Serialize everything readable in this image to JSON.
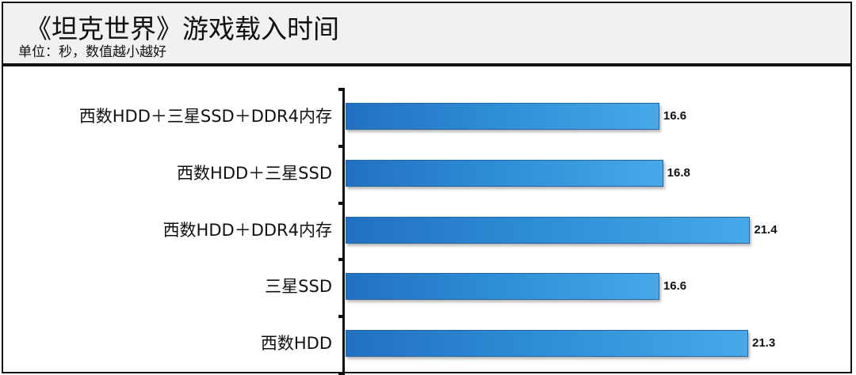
{
  "header": {
    "title": "《坦克世界》游戏载入时间",
    "subtitle": "单位：秒，数值越小越好"
  },
  "chart_data": {
    "type": "bar",
    "orientation": "horizontal",
    "title": "《坦克世界》游戏载入时间",
    "subtitle": "单位：秒，数值越小越好",
    "xlabel": "",
    "ylabel": "",
    "unit": "秒",
    "categories": [
      "西数HDD＋三星SSD＋DDR4内存",
      "西数HDD＋三星SSD",
      "西数HDD＋DDR4内存",
      "三星SSD",
      "西数HDD"
    ],
    "values": [
      16.6,
      16.8,
      21.4,
      16.6,
      21.3
    ],
    "value_labels": [
      "16.6",
      "16.8",
      "21.4",
      "16.6",
      "21.3"
    ],
    "grid": false,
    "legend": "none",
    "colors": {
      "bar_start": "#2270c2",
      "bar_end": "#48a8e8",
      "bar_border": "#2466a6",
      "header_bg": "#f1f1f1"
    }
  }
}
